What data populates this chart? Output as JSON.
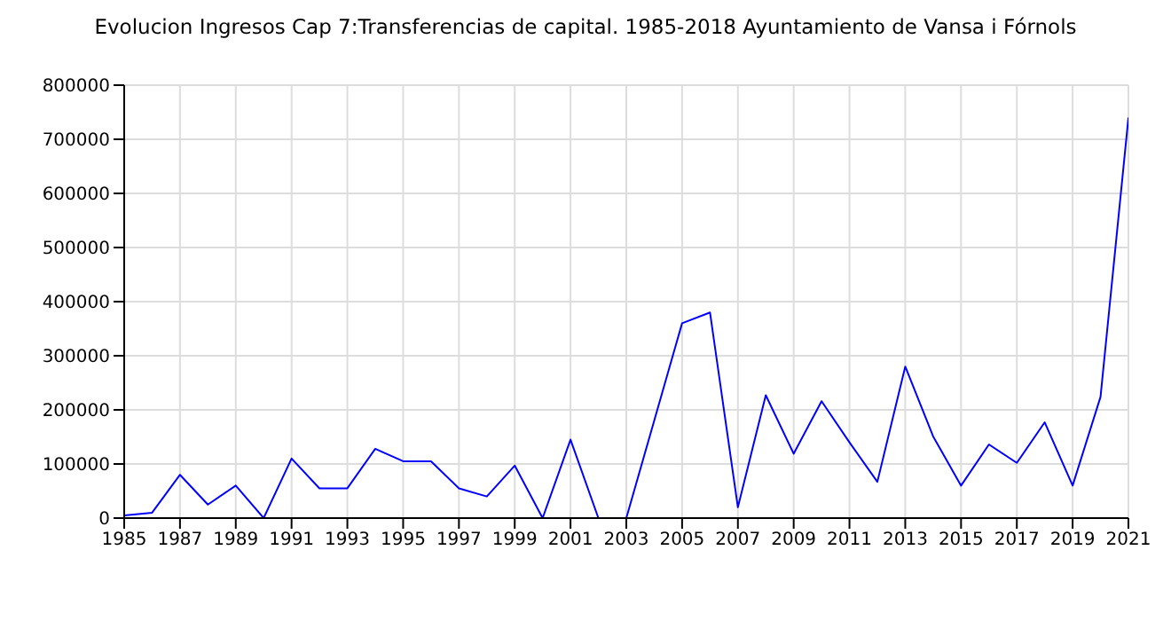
{
  "chart_data": {
    "type": "line",
    "title": "Evolucion Ingresos Cap 7:Transferencias de capital. 1985-2018 Ayuntamiento de Vansa i Fórnols",
    "x": [
      1985,
      1986,
      1987,
      1988,
      1989,
      1990,
      1991,
      1992,
      1993,
      1994,
      1995,
      1996,
      1997,
      1998,
      1999,
      2000,
      2001,
      2002,
      2003,
      2004,
      2005,
      2006,
      2007,
      2008,
      2009,
      2010,
      2011,
      2012,
      2013,
      2014,
      2015,
      2016,
      2017,
      2018,
      2019,
      2020,
      2021
    ],
    "series": [
      {
        "color": "#0000ff",
        "values": [
          5000,
          10000,
          80000,
          25000,
          60000,
          0,
          110000,
          55000,
          55000,
          128000,
          105000,
          105000,
          55000,
          40000,
          97000,
          0,
          145000,
          0,
          0,
          180000,
          360000,
          380000,
          20000,
          227000,
          119000,
          216000,
          140000,
          67000,
          280000,
          151000,
          60000,
          136000,
          102000,
          177000,
          60000,
          224000,
          740000
        ]
      }
    ],
    "xlim": [
      1985,
      2021
    ],
    "xticks": [
      1985,
      1987,
      1989,
      1991,
      1993,
      1995,
      1997,
      1999,
      2001,
      2003,
      2005,
      2007,
      2009,
      2011,
      2013,
      2015,
      2017,
      2019,
      2021
    ],
    "ylim": [
      0,
      800000
    ],
    "yticks": [
      0,
      100000,
      200000,
      300000,
      400000,
      500000,
      600000,
      700000,
      800000
    ],
    "grid": true,
    "legend": false,
    "marker": "none",
    "line_style": "solid"
  }
}
